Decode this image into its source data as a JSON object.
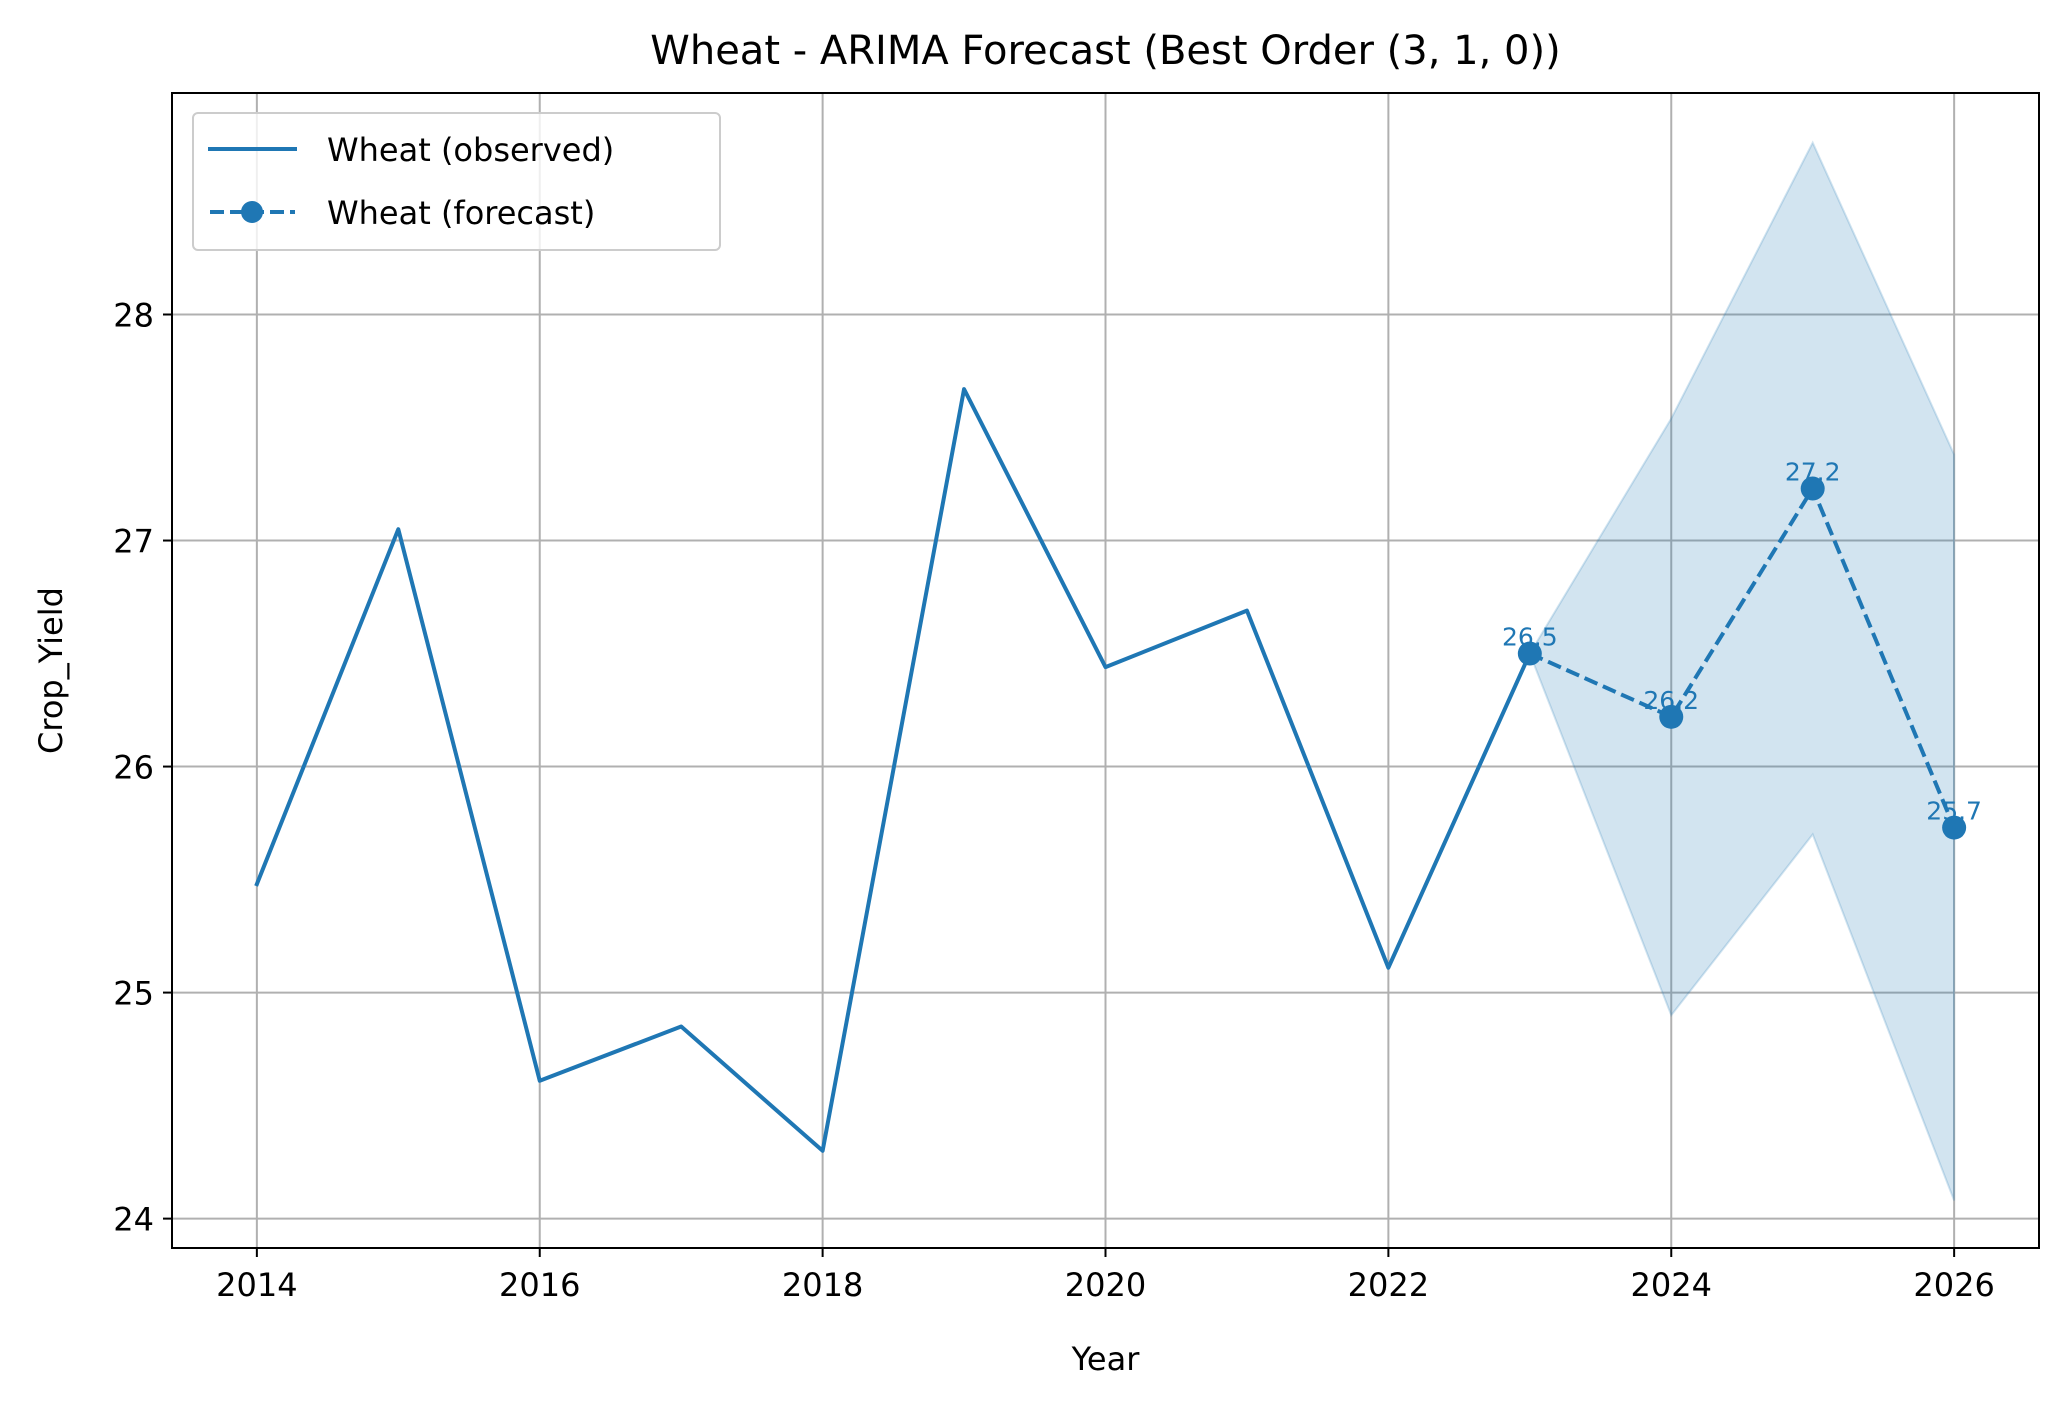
{
  "chart_data": {
    "type": "line",
    "title": "Wheat - ARIMA Forecast (Best Order (3, 1, 0))",
    "xlabel": "Year",
    "ylabel": "Crop_Yield",
    "xlim": [
      2013.4,
      2026.6
    ],
    "ylim": [
      23.87,
      28.98
    ],
    "xticks": [
      2014,
      2016,
      2018,
      2020,
      2022,
      2024,
      2026
    ],
    "yticks": [
      24,
      25,
      26,
      27,
      28
    ],
    "grid": true,
    "legend_position": "top-left",
    "series": [
      {
        "name": "Wheat (observed)",
        "style": "solid",
        "color": "#1f77b4",
        "x": [
          2014,
          2015,
          2016,
          2017,
          2018,
          2019,
          2020,
          2021,
          2022,
          2023
        ],
        "y": [
          25.48,
          27.05,
          24.61,
          24.85,
          24.3,
          27.67,
          26.44,
          26.69,
          25.11,
          26.5
        ]
      },
      {
        "name": "Wheat (forecast)",
        "style": "dashed",
        "marker": "circle",
        "color": "#1f77b4",
        "x": [
          2023,
          2024,
          2025,
          2026
        ],
        "y": [
          26.5,
          26.22,
          27.23,
          25.73
        ],
        "labels": [
          "26.5",
          "26.2",
          "27.2",
          "25.7"
        ]
      }
    ],
    "confidence_band": {
      "color": "#1f77b4",
      "x": [
        2023,
        2024,
        2025,
        2026
      ],
      "lower": [
        26.5,
        24.9,
        25.7,
        24.08
      ],
      "upper": [
        26.5,
        27.54,
        28.76,
        27.38
      ]
    }
  }
}
